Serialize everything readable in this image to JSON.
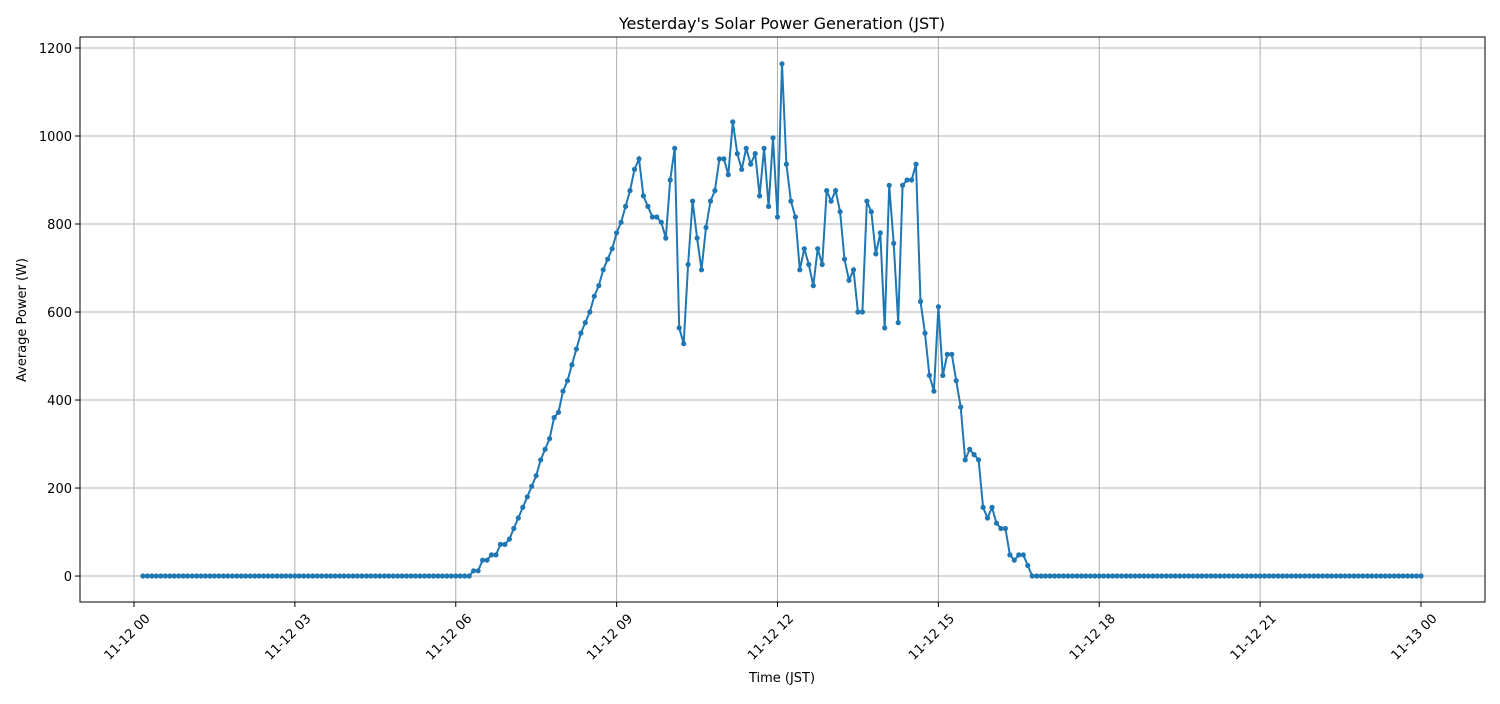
{
  "chart_data": {
    "type": "line",
    "title": "Yesterday's Solar Power Generation (JST)",
    "xlabel": "Time (JST)",
    "ylabel": "Average Power (W)",
    "x_start": "11-12 00:10",
    "x_end": "11-13 00:00",
    "interval_minutes": 5,
    "x_ticks": [
      "11-12 00",
      "11-12 03",
      "11-12 06",
      "11-12 09",
      "11-12 12",
      "11-12 15",
      "11-12 18",
      "11-12 21",
      "11-13 00"
    ],
    "y_ticks": [
      0,
      200,
      400,
      600,
      800,
      1000,
      1200
    ],
    "ylim": [
      -59,
      1225
    ],
    "grid": true,
    "marker": "circle",
    "color": "#1f77b4",
    "values": [
      0,
      0,
      0,
      0,
      0,
      0,
      0,
      0,
      0,
      0,
      0,
      0,
      0,
      0,
      0,
      0,
      0,
      0,
      0,
      0,
      0,
      0,
      0,
      0,
      0,
      0,
      0,
      0,
      0,
      0,
      0,
      0,
      0,
      0,
      0,
      0,
      0,
      0,
      0,
      0,
      0,
      0,
      0,
      0,
      0,
      0,
      0,
      0,
      0,
      0,
      0,
      0,
      0,
      0,
      0,
      0,
      0,
      0,
      0,
      0,
      0,
      0,
      0,
      0,
      0,
      0,
      0,
      0,
      0,
      0,
      0,
      0,
      0,
      0,
      12,
      12,
      36,
      36,
      48,
      48,
      72,
      72,
      84,
      108,
      132,
      156,
      180,
      204,
      228,
      264,
      288,
      312,
      360,
      372,
      420,
      444,
      480,
      516,
      552,
      576,
      600,
      636,
      660,
      696,
      720,
      744,
      780,
      804,
      840,
      876,
      924,
      948,
      864,
      840,
      816,
      816,
      804,
      768,
      900,
      972,
      564,
      528,
      708,
      852,
      768,
      696,
      792,
      852,
      876,
      948,
      948,
      912,
      1032,
      960,
      924,
      972,
      936,
      960,
      864,
      972,
      840,
      996,
      816,
      1164,
      936,
      852,
      816,
      696,
      744,
      708,
      660,
      744,
      708,
      876,
      852,
      876,
      828,
      720,
      672,
      696,
      600,
      600,
      852,
      828,
      732,
      780,
      564,
      888,
      756,
      576,
      888,
      900,
      900,
      936,
      624,
      552,
      456,
      420,
      612,
      456,
      504,
      504,
      444,
      384,
      264,
      288,
      276,
      264,
      156,
      132,
      156,
      120,
      108,
      108,
      48,
      36,
      48,
      48,
      24,
      0,
      0,
      0,
      0,
      0,
      0,
      0,
      0,
      0,
      0,
      0,
      0,
      0,
      0,
      0,
      0,
      0,
      0,
      0,
      0,
      0,
      0,
      0,
      0,
      0,
      0,
      0,
      0,
      0,
      0,
      0,
      0,
      0,
      0,
      0,
      0,
      0,
      0,
      0,
      0,
      0,
      0,
      0,
      0,
      0,
      0,
      0,
      0,
      0,
      0,
      0,
      0,
      0,
      0,
      0,
      0,
      0,
      0,
      0,
      0,
      0,
      0,
      0,
      0,
      0,
      0,
      0,
      0,
      0,
      0,
      0,
      0,
      0,
      0,
      0,
      0,
      0,
      0,
      0,
      0,
      0,
      0,
      0,
      0,
      0,
      0,
      0,
      0
    ]
  }
}
